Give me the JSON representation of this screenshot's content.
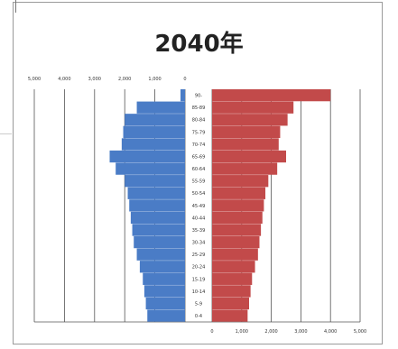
{
  "chart_data": {
    "type": "bar",
    "title": "2040年",
    "age_groups": [
      "0-4",
      "5-9",
      "10-14",
      "15-19",
      "20-24",
      "25-29",
      "30-34",
      "35-39",
      "40-44",
      "45-49",
      "50-54",
      "55-59",
      "60-64",
      "65-69",
      "70-74",
      "75-79",
      "80-84",
      "85-89",
      "90-"
    ],
    "series": [
      {
        "side": "left",
        "color": "#4a7cc6",
        "values": [
          1.25,
          1.3,
          1.35,
          1.4,
          1.5,
          1.6,
          1.7,
          1.75,
          1.8,
          1.85,
          1.9,
          2.0,
          2.3,
          2.5,
          2.1,
          2.05,
          2.0,
          1.6,
          0.15
        ]
      },
      {
        "side": "right",
        "color": "#c24a4a",
        "values": [
          1.2,
          1.25,
          1.3,
          1.35,
          1.45,
          1.55,
          1.6,
          1.65,
          1.7,
          1.75,
          1.8,
          1.9,
          2.2,
          2.5,
          2.25,
          2.3,
          2.55,
          2.75,
          4.0
        ]
      }
    ],
    "top_axis_ticks": [
      "5,000",
      "4,000",
      "3,000",
      "2,000",
      "1,000",
      "0"
    ],
    "bottom_axis_ticks": [
      "0",
      "1,000",
      "2,000",
      "3,000",
      "4,000",
      "5,000"
    ],
    "left_xlim": [
      5,
      0
    ],
    "right_xlim": [
      0,
      5
    ],
    "grid": true
  }
}
